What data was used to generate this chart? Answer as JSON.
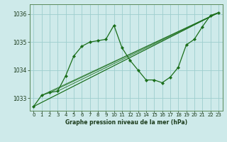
{
  "title": "Graphe pression niveau de la mer (hPa)",
  "background_color": "#ceeaea",
  "grid_color": "#9ecece",
  "line_color": "#1a6e1a",
  "xlim": [
    -0.5,
    23.5
  ],
  "ylim": [
    1032.55,
    1036.35
  ],
  "yticks": [
    1033,
    1034,
    1035,
    1036
  ],
  "xtick_labels": [
    "0",
    "1",
    "2",
    "3",
    "4",
    "5",
    "6",
    "7",
    "8",
    "9",
    "10",
    "11",
    "12",
    "13",
    "14",
    "15",
    "16",
    "17",
    "18",
    "19",
    "20",
    "21",
    "22",
    "23"
  ],
  "series1": [
    1032.7,
    1033.1,
    1033.2,
    1033.25,
    1033.8,
    1034.5,
    1034.85,
    1035.0,
    1035.05,
    1035.1,
    1035.6,
    1034.8,
    1034.35,
    1034.0,
    1033.65,
    1033.65,
    1033.55,
    1033.75,
    1034.1,
    1034.9,
    1035.1,
    1035.55,
    1035.95,
    1036.05
  ],
  "straight_lines": [
    {
      "x": [
        0,
        23
      ],
      "y": [
        1032.7,
        1036.05
      ]
    },
    {
      "x": [
        0,
        23
      ],
      "y": [
        1032.7,
        1036.05
      ]
    },
    {
      "x": [
        1,
        23
      ],
      "y": [
        1033.1,
        1036.05
      ]
    },
    {
      "x": [
        2,
        23
      ],
      "y": [
        1033.2,
        1036.05
      ]
    },
    {
      "x": [
        3,
        23
      ],
      "y": [
        1033.25,
        1036.05
      ]
    }
  ]
}
